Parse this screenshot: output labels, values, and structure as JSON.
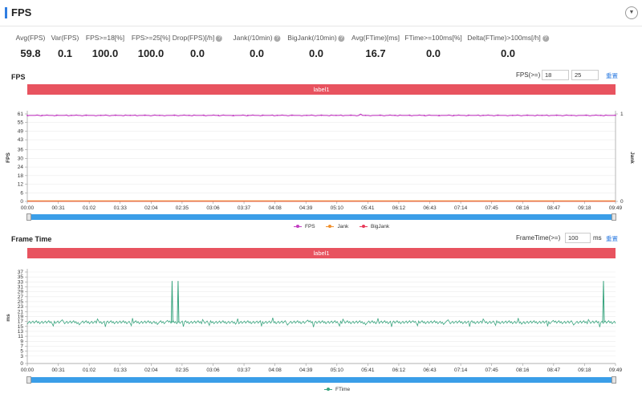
{
  "header": {
    "title": "FPS",
    "collapse_icon": "chevron-down-icon"
  },
  "stats": [
    {
      "label": "Avg(FPS)",
      "value": "59.8",
      "help": false
    },
    {
      "label": "Var(FPS)",
      "value": "0.1",
      "help": false
    },
    {
      "label": "FPS>=18[%]",
      "value": "100.0",
      "help": false
    },
    {
      "label": "FPS>=25[%]",
      "value": "100.0",
      "help": false
    },
    {
      "label": "Drop(FPS)[/h]",
      "value": "0.0",
      "help": true
    },
    {
      "label": "Jank(/10min)",
      "value": "0.0",
      "help": true
    },
    {
      "label": "BigJank(/10min)",
      "value": "0.0",
      "help": true
    },
    {
      "label": "Avg(FTime)[ms]",
      "value": "16.7",
      "help": false
    },
    {
      "label": "FTime>=100ms[%]",
      "value": "0.0",
      "help": false
    },
    {
      "label": "Delta(FTime)>100ms[/h]",
      "value": "0.0",
      "help": true
    }
  ],
  "help_glyph": "?",
  "fps_section": {
    "title": "FPS",
    "threshold_label": "FPS(>=)",
    "threshold_1": "18",
    "threshold_2": "25",
    "reset_label": "重置",
    "banner": "label1"
  },
  "ftime_section": {
    "title": "Frame Time",
    "threshold_label": "FrameTime(>=)",
    "threshold": "100",
    "unit": "ms",
    "reset_label": "重置",
    "banner": "label1"
  },
  "x_ticks": [
    "00:00",
    "00:31",
    "01:02",
    "01:33",
    "02:04",
    "02:35",
    "03:06",
    "03:37",
    "04:08",
    "04:39",
    "05:10",
    "05:41",
    "06:12",
    "06:43",
    "07:14",
    "07:45",
    "08:16",
    "08:47",
    "09:18",
    "09:49"
  ],
  "colors": {
    "fps": "#c23dc2",
    "jank": "#f0902c",
    "bigjank": "#e83a5a",
    "ftime": "#3aa57f",
    "accent": "#2f7de1",
    "banner": "#e8535f"
  },
  "chart_data": [
    {
      "type": "line",
      "ylabel": "FPS",
      "y2label": "Jank",
      "ylim": [
        0,
        61
      ],
      "yticks": [
        0,
        6,
        12,
        18,
        24,
        30,
        36,
        43,
        49,
        55,
        61
      ],
      "y2lim": [
        0,
        1
      ],
      "y2ticks": [
        0,
        1
      ],
      "x": [
        "00:00",
        "09:49"
      ],
      "series": [
        {
          "name": "FPS",
          "values": [
            60,
            60
          ]
        },
        {
          "name": "Jank",
          "values": [
            0,
            0
          ]
        },
        {
          "name": "BigJank",
          "values": [
            0,
            0
          ]
        }
      ]
    },
    {
      "type": "line",
      "ylabel": "ms",
      "ylim": [
        0,
        37
      ],
      "yticks": [
        0,
        3,
        5,
        7,
        9,
        11,
        13,
        15,
        17,
        19,
        21,
        23,
        25,
        27,
        29,
        31,
        33,
        35,
        37
      ],
      "x": [
        "00:00",
        "09:49"
      ],
      "series": [
        {
          "name": "FTime",
          "values": [
            16.7,
            16.7
          ],
          "spikes": [
            {
              "x": "02:25",
              "y": 33.4
            },
            {
              "x": "02:31",
              "y": 33.4
            },
            {
              "x": "09:49",
              "y": 33.4
            }
          ]
        }
      ]
    }
  ]
}
